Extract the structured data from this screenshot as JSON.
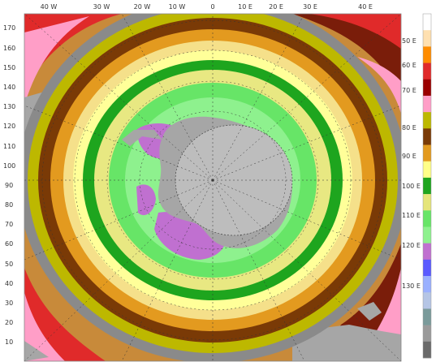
{
  "top_axis": [
    "40 W",
    "30 W",
    "20 W",
    "10 W",
    "0",
    "10 E",
    "20 E",
    "30 E",
    "40 E"
  ],
  "left_axis": [
    "170",
    "160",
    "150",
    "140",
    "130",
    "120",
    "110",
    "100",
    "90",
    "80",
    "70",
    "60",
    "50",
    "40",
    "30",
    "20",
    "10"
  ],
  "right_axis": [
    "50 E",
    "60 E",
    "70 E",
    "80 E",
    "90 E",
    "100 E",
    "110 E",
    "120 E",
    "130 E"
  ],
  "colors": {
    "land": "#a6a6a6",
    "pole": "#bdbdbd",
    "ocean_zones": [
      "#d9d9d9",
      "#ffdcdc",
      "#ff9ec7",
      "#e02a2a",
      "#7a1d0a",
      "#b56b12",
      "#e39a1f",
      "#f5d26a",
      "#ffffa0",
      "#d7e36b",
      "#1ea51e",
      "#67e567",
      "#8ef18e",
      "#c070d0"
    ],
    "colorbar": [
      "#ffffff",
      "#ffe0b0",
      "#ff8c00",
      "#e02a2a",
      "#9a0000",
      "#ff9ec7",
      "#bdb800",
      "#7a3a06",
      "#e39a1f",
      "#ffff88",
      "#1ea51e",
      "#e5e57a",
      "#67e567",
      "#8ef18e",
      "#c070d0",
      "#5a5aff",
      "#9ab0ff",
      "#b5c5e5",
      "#7a9a9a",
      "#9a9a9a",
      "#6a6a6a"
    ]
  }
}
